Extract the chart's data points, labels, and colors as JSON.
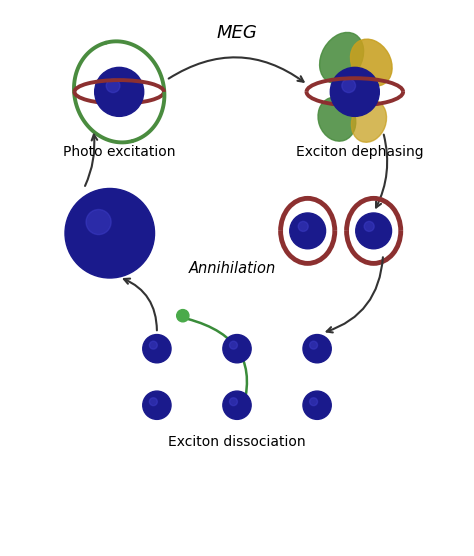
{
  "title": "MEG",
  "labels": {
    "photo_excitation": "Photo excitation",
    "exciton_dephasing": "Exciton dephasing",
    "annihilation": "Annihilation",
    "exciton_dissociation": "Exciton dissociation"
  },
  "colors": {
    "blue_sphere": "#1a1a8c",
    "blue_highlight": "#4040cc",
    "green_orbital": "#4a8c3f",
    "red_orbital": "#8c3030",
    "yellow_orbital": "#c8a020",
    "background": "#ffffff",
    "arrow": "#333333",
    "green_arrow": "#3a8c3a",
    "green_dot": "#4aaa4a"
  },
  "layout": {
    "figsize": [
      4.74,
      5.56
    ],
    "dpi": 100
  }
}
